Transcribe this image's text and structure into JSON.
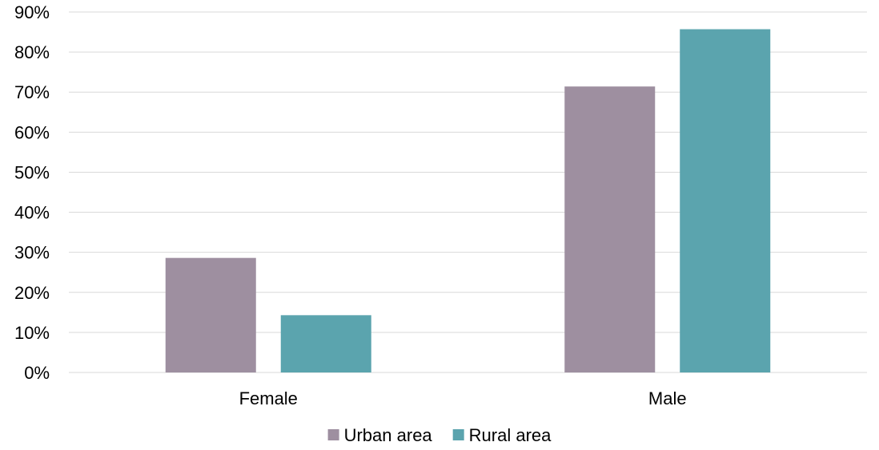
{
  "chart_data": {
    "type": "bar",
    "title": "",
    "xlabel": "",
    "ylabel": "",
    "categories": [
      "Female",
      "Male"
    ],
    "series": [
      {
        "name": "Urban area",
        "values": [
          28.6,
          71.4
        ],
        "color": "#9E8FA0"
      },
      {
        "name": "Rural area",
        "values": [
          14.3,
          85.7
        ],
        "color": "#5BA4AE"
      }
    ],
    "ylim": [
      0,
      90
    ],
    "y_ticks": [
      0,
      10,
      20,
      30,
      40,
      50,
      60,
      70,
      80,
      90
    ],
    "y_tick_labels": [
      "0%",
      "10%",
      "20%",
      "30%",
      "40%",
      "50%",
      "60%",
      "70%",
      "80%",
      "90%"
    ],
    "grid": true,
    "legend_position": "bottom",
    "colors": {
      "gridline": "#D9D9D9",
      "text": "#000000"
    }
  }
}
